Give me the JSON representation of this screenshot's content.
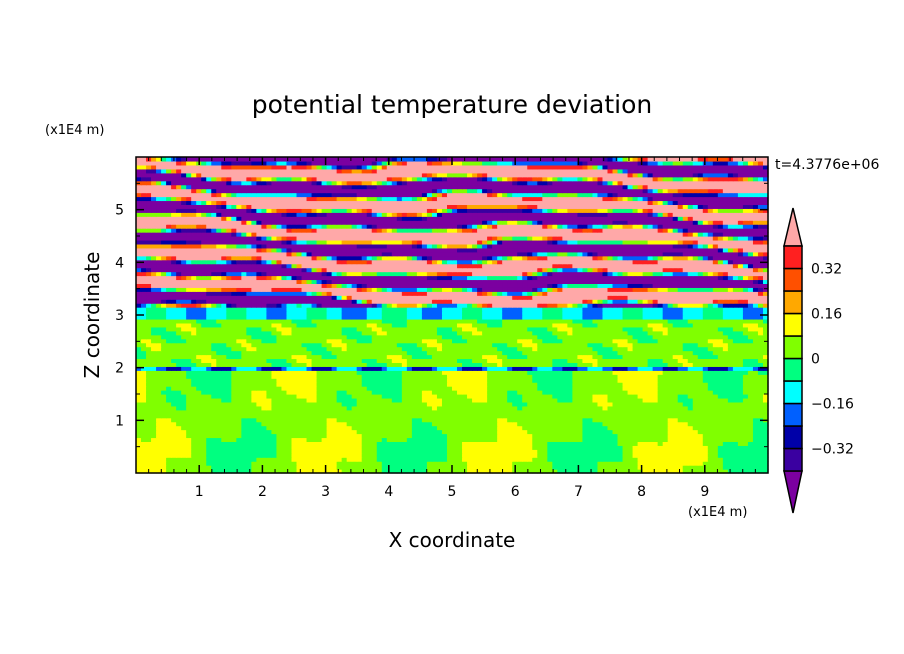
{
  "chart_data": {
    "type": "heatmap",
    "subtype": "filled-contour",
    "title": "potential temperature deviation",
    "xlabel": "X coordinate",
    "ylabel": "Z coordinate",
    "x_unit": "(x1E4 m)",
    "y_unit": "(x1E4 m)",
    "time_label": "t=4.3776e+06",
    "xlim": [
      0,
      10
    ],
    "ylim": [
      0,
      6
    ],
    "xticks": [
      1,
      2,
      3,
      4,
      5,
      6,
      7,
      8,
      9
    ],
    "yticks": [
      1,
      2,
      3,
      4,
      5
    ],
    "levels": [
      -0.4,
      -0.32,
      -0.24,
      -0.16,
      -0.08,
      0,
      0.08,
      0.16,
      0.24,
      0.32,
      0.4
    ],
    "colorbar_labels": [
      "0.32",
      "0.16",
      "0",
      "-0.16",
      "-0.32"
    ],
    "colorbar_label_values": [
      0.32,
      0.16,
      0,
      -0.16,
      -0.32
    ],
    "colors": [
      "#7b00a0",
      "#3a00a0",
      "#0000a8",
      "#0060ff",
      "#00ffff",
      "#00ff80",
      "#80ff00",
      "#ffff00",
      "#ffa800",
      "#ff5000",
      "#ff2020",
      "#ffa8a8"
    ],
    "colorbar_position": "right"
  }
}
